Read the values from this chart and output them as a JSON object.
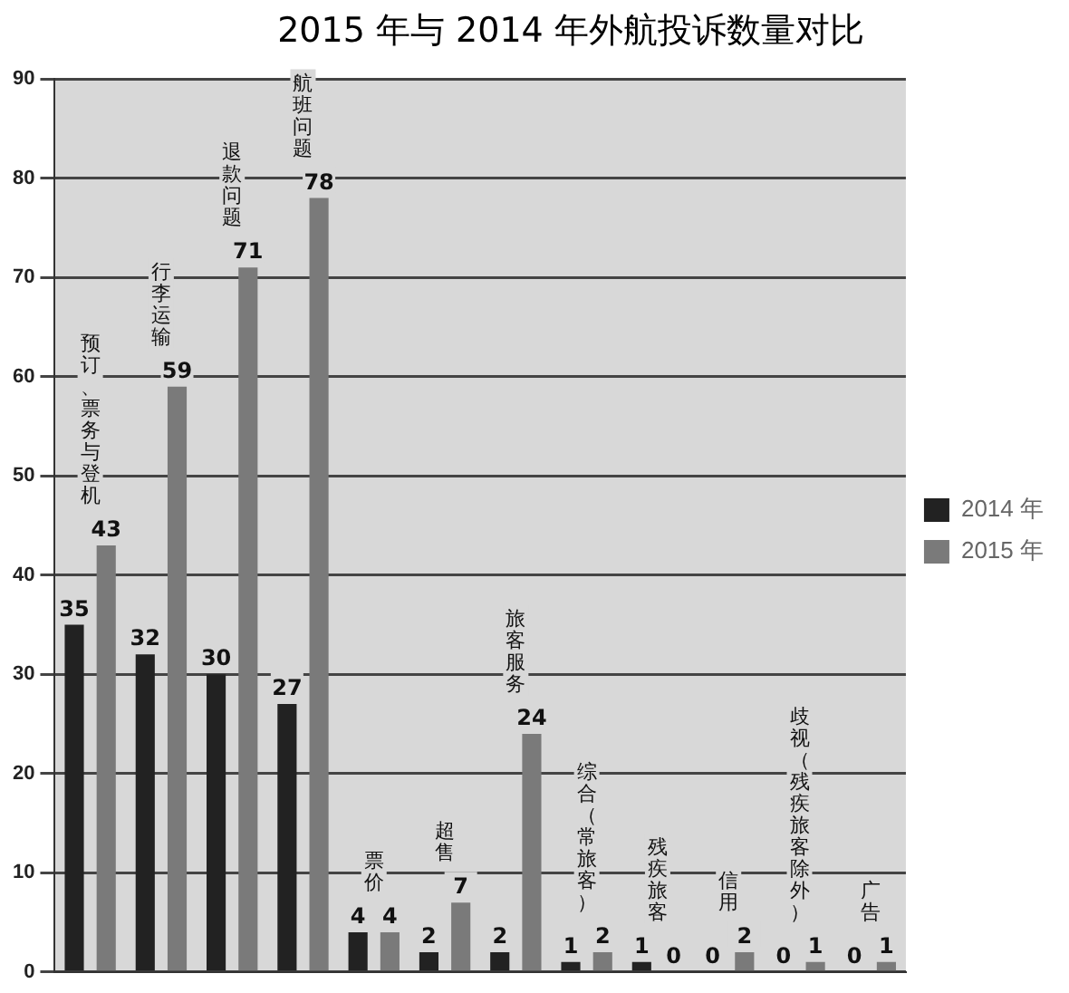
{
  "chart_data": {
    "type": "bar",
    "title": "2015 年与 2014 年外航投诉数量对比",
    "categories": [
      "预订、票务与登机",
      "行李运输",
      "退款问题",
      "航班问题",
      "票价",
      "超售",
      "旅客服务",
      "综合（常旅客）",
      "残疾旅客",
      "信用",
      "歧视（残疾旅客除外）",
      "广告"
    ],
    "series": [
      {
        "name": "2014 年",
        "color": "#222222",
        "values": [
          35,
          32,
          30,
          27,
          4,
          2,
          2,
          1,
          1,
          0,
          0,
          0
        ]
      },
      {
        "name": "2015 年",
        "color": "#7a7a7a",
        "values": [
          43,
          59,
          71,
          78,
          4,
          7,
          24,
          2,
          0,
          2,
          1,
          1
        ]
      }
    ],
    "ylim": [
      0,
      90
    ],
    "yticks": [
      0,
      10,
      20,
      30,
      40,
      50,
      60,
      70,
      80,
      90
    ],
    "grid": "y",
    "legend": "right",
    "data_labels": true
  }
}
